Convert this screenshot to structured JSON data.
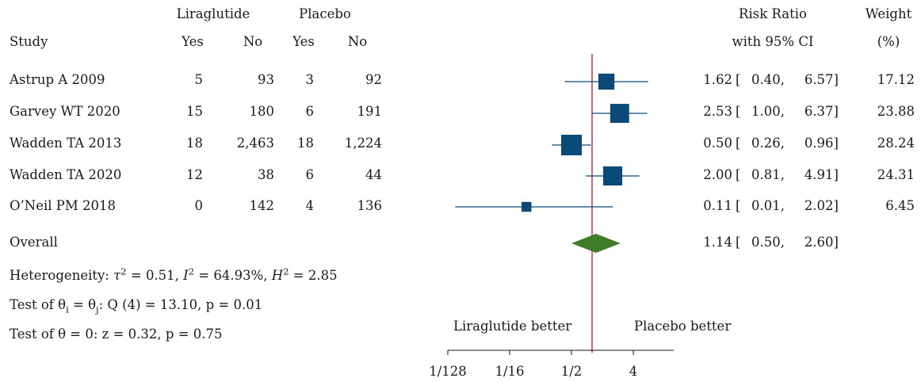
{
  "header": {
    "group1": "Liraglutide",
    "group2": "Placebo",
    "study_label": "Study",
    "yes_label": "Yes",
    "no_label": "No",
    "rr_label_line1": "Risk Ratio",
    "rr_label_line2": "with 95% CI",
    "weight_line1": "Weight",
    "weight_line2": "(%)"
  },
  "chart_data": {
    "type": "forest",
    "x_scale": "log2",
    "xlim": [
      0.0078125,
      10
    ],
    "ticks": [
      {
        "value": 0.0078125,
        "label": "1/128"
      },
      {
        "value": 0.0625,
        "label": "1/16"
      },
      {
        "value": 0.5,
        "label": "1/2"
      },
      {
        "value": 4,
        "label": "4"
      }
    ],
    "null_line": 1,
    "null_line_color": "#c8102e",
    "marker_color": "#0b4a78",
    "diamond_color": "#3f7d28",
    "left_label": "Liraglutide better",
    "right_label": "Placebo better",
    "studies": [
      {
        "study": "Astrup A 2009",
        "lira_yes": "5",
        "lira_no": "93",
        "plac_yes": "3",
        "plac_no": "92",
        "rr": 1.62,
        "lo": 0.4,
        "hi": 6.57,
        "weight": 17.12,
        "rr_text": "1.62",
        "lo_text": "0.40,",
        "hi_text": "6.57]",
        "weight_text": "17.12"
      },
      {
        "study": "Garvey WT 2020",
        "lira_yes": "15",
        "lira_no": "180",
        "plac_yes": "6",
        "plac_no": "191",
        "rr": 2.53,
        "lo": 1.0,
        "hi": 6.37,
        "weight": 23.88,
        "rr_text": "2.53",
        "lo_text": "1.00,",
        "hi_text": "6.37]",
        "weight_text": "23.88"
      },
      {
        "study": "Wadden TA 2013",
        "lira_yes": "18",
        "lira_no": "2,463",
        "plac_yes": "18",
        "plac_no": "1,224",
        "rr": 0.5,
        "lo": 0.26,
        "hi": 0.96,
        "weight": 28.24,
        "rr_text": "0.50",
        "lo_text": "0.26,",
        "hi_text": "0.96]",
        "weight_text": "28.24"
      },
      {
        "study": "Wadden TA 2020",
        "lira_yes": "12",
        "lira_no": "38",
        "plac_yes": "6",
        "plac_no": "44",
        "rr": 2.0,
        "lo": 0.81,
        "hi": 4.91,
        "weight": 24.31,
        "rr_text": "2.00",
        "lo_text": "0.81,",
        "hi_text": "4.91]",
        "weight_text": "24.31"
      },
      {
        "study": "O’Neil PM 2018",
        "lira_yes": "0",
        "lira_no": "142",
        "plac_yes": "4",
        "plac_no": "136",
        "rr": 0.11,
        "lo": 0.01,
        "hi": 2.02,
        "weight": 6.45,
        "rr_text": "0.11",
        "lo_text": "0.01,",
        "hi_text": "2.02]",
        "weight_text": "6.45"
      }
    ],
    "overall": {
      "label": "Overall",
      "rr": 1.14,
      "lo": 0.5,
      "hi": 2.6,
      "rr_text": "1.14",
      "lo_text": "0.50,",
      "hi_text": "2.60]"
    },
    "open_bracket": "["
  },
  "stats": {
    "het_prefix": "Heterogeneity: ",
    "tau": "τ",
    "tau_val": " = 0.51, ",
    "i_label": "I",
    "i_val": " = 64.93%, ",
    "h_label": "H",
    "h_val": " = 2.85",
    "sq": "2",
    "test1_prefix": "Test of θ",
    "sub_i": "i",
    "test1_mid": " = θ",
    "sub_j": "j",
    "test1_rest": ": Q (4) = 13.10, p = 0.01",
    "test2": "Test of θ = 0: z = 0.32, p = 0.75"
  }
}
